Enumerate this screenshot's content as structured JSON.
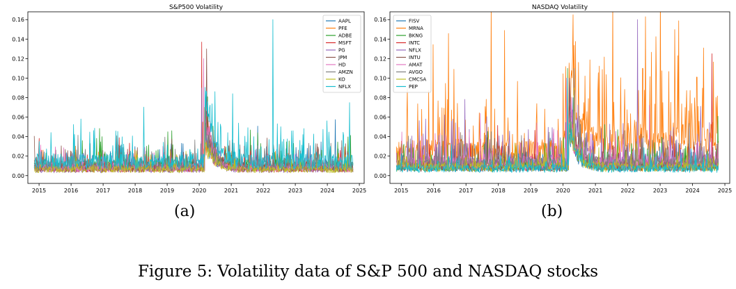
{
  "caption": "Figure 5: Volatility data of S&P 500 and NASDAQ stocks",
  "chart_data": [
    {
      "type": "line",
      "panel_label": "(a)",
      "title": "S&P500 Volatility",
      "xlabel": "",
      "ylabel": "",
      "xlim": [
        2014.65,
        2025.15
      ],
      "ylim": [
        -0.008,
        0.168
      ],
      "x_ticks": [
        2015,
        2016,
        2017,
        2018,
        2019,
        2020,
        2021,
        2022,
        2023,
        2024,
        2025
      ],
      "x_tick_labels": [
        "2015",
        "2016",
        "2017",
        "2018",
        "2019",
        "2020",
        "2021",
        "2022",
        "2023",
        "2024",
        "2025"
      ],
      "y_ticks": [
        0.0,
        0.02,
        0.04,
        0.06,
        0.08,
        0.1,
        0.12,
        0.14,
        0.16
      ],
      "y_tick_labels": [
        "0.00",
        "0.02",
        "0.04",
        "0.06",
        "0.08",
        "0.10",
        "0.12",
        "0.14",
        "0.16"
      ],
      "legend_position": "top-right",
      "x_range": [
        2014.85,
        2024.8
      ],
      "approximate": true,
      "series": [
        {
          "name": "AAPL",
          "color": "#1f77b4",
          "base": 0.012,
          "noise": 0.01,
          "peak": 0.065
        },
        {
          "name": "PFE",
          "color": "#ff7f0e",
          "base": 0.01,
          "noise": 0.008,
          "peak": 0.055
        },
        {
          "name": "ADBE",
          "color": "#2ca02c",
          "base": 0.013,
          "noise": 0.012,
          "peak": 0.081
        },
        {
          "name": "MSFT",
          "color": "#d62728",
          "base": 0.01,
          "noise": 0.008,
          "peak": 0.137
        },
        {
          "name": "PG",
          "color": "#9467bd",
          "base": 0.008,
          "noise": 0.007,
          "peak": 0.09
        },
        {
          "name": "JPM",
          "color": "#8c564b",
          "base": 0.01,
          "noise": 0.009,
          "peak": 0.13
        },
        {
          "name": "HD",
          "color": "#e377c2",
          "base": 0.01,
          "noise": 0.008,
          "peak": 0.12
        },
        {
          "name": "AMZN",
          "color": "#7f7f7f",
          "base": 0.013,
          "noise": 0.012,
          "peak": 0.08
        },
        {
          "name": "KO",
          "color": "#bcbd22",
          "base": 0.008,
          "noise": 0.006,
          "peak": 0.07
        },
        {
          "name": "NFLX",
          "color": "#17becf",
          "base": 0.018,
          "noise": 0.018,
          "peak": 0.16
        }
      ]
    },
    {
      "type": "line",
      "panel_label": "(b)",
      "title": "NASDAQ Volatility",
      "xlabel": "",
      "ylabel": "",
      "xlim": [
        2014.65,
        2025.15
      ],
      "ylim": [
        -0.008,
        0.168
      ],
      "x_ticks": [
        2015,
        2016,
        2017,
        2018,
        2019,
        2020,
        2021,
        2022,
        2023,
        2024,
        2025
      ],
      "x_tick_labels": [
        "2015",
        "2016",
        "2017",
        "2018",
        "2019",
        "2020",
        "2021",
        "2022",
        "2023",
        "2024",
        "2025"
      ],
      "y_ticks": [
        0.0,
        0.02,
        0.04,
        0.06,
        0.08,
        0.1,
        0.12,
        0.14,
        0.16
      ],
      "y_tick_labels": [
        "0.00",
        "0.02",
        "0.04",
        "0.06",
        "0.08",
        "0.10",
        "0.12",
        "0.14",
        "0.16"
      ],
      "legend_position": "top-left",
      "x_range": [
        2014.85,
        2024.8
      ],
      "approximate": true,
      "series": [
        {
          "name": "FISV",
          "color": "#1f77b4",
          "base": 0.011,
          "noise": 0.009,
          "peak": 0.08
        },
        {
          "name": "MRNA",
          "color": "#ff7f0e",
          "base": 0.03,
          "noise": 0.035,
          "peak": 0.165
        },
        {
          "name": "BKNG",
          "color": "#2ca02c",
          "base": 0.013,
          "noise": 0.012,
          "peak": 0.11
        },
        {
          "name": "INTC",
          "color": "#d62728",
          "base": 0.013,
          "noise": 0.011,
          "peak": 0.125
        },
        {
          "name": "NFLX",
          "color": "#9467bd",
          "base": 0.018,
          "noise": 0.018,
          "peak": 0.16
        },
        {
          "name": "INTU",
          "color": "#8c564b",
          "base": 0.012,
          "noise": 0.01,
          "peak": 0.1
        },
        {
          "name": "AMAT",
          "color": "#e377c2",
          "base": 0.016,
          "noise": 0.014,
          "peak": 0.1
        },
        {
          "name": "AVGO",
          "color": "#7f7f7f",
          "base": 0.015,
          "noise": 0.014,
          "peak": 0.11
        },
        {
          "name": "CMCSA",
          "color": "#bcbd22",
          "base": 0.011,
          "noise": 0.009,
          "peak": 0.09
        },
        {
          "name": "PEP",
          "color": "#17becf",
          "base": 0.009,
          "noise": 0.007,
          "peak": 0.1
        }
      ]
    }
  ]
}
